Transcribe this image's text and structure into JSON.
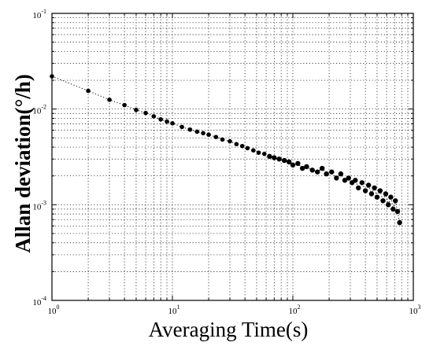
{
  "chart_data": {
    "type": "scatter",
    "title": "",
    "xlabel": "Averaging Time(s)",
    "ylabel": "Allan deviation(°/h)",
    "x_scale": "log",
    "y_scale": "log",
    "xlim": [
      1,
      1000
    ],
    "ylim": [
      0.0001,
      0.1
    ],
    "grid": true,
    "x_ticks": [
      {
        "value": 1,
        "base": "10",
        "exp": "0"
      },
      {
        "value": 10,
        "base": "10",
        "exp": "1"
      },
      {
        "value": 100,
        "base": "10",
        "exp": "2"
      },
      {
        "value": 1000,
        "base": "10",
        "exp": "3"
      }
    ],
    "y_ticks": [
      {
        "value": 0.0001,
        "base": "10",
        "exp": "-4"
      },
      {
        "value": 0.001,
        "base": "10",
        "exp": "-3"
      },
      {
        "value": 0.01,
        "base": "10",
        "exp": "-2"
      },
      {
        "value": 0.1,
        "base": "10",
        "exp": "-1"
      }
    ],
    "series": [
      {
        "color": "#000000",
        "x": [
          1,
          2,
          3,
          4,
          5,
          6,
          7,
          8,
          9,
          10,
          12,
          14,
          16,
          18,
          20,
          23,
          26,
          30,
          34,
          38,
          42,
          47,
          52,
          58,
          64,
          70,
          77,
          85,
          93,
          100,
          110,
          120,
          130,
          145,
          160,
          175,
          190,
          210,
          230,
          250,
          270,
          290,
          310,
          330,
          350,
          375,
          400,
          425,
          450,
          475,
          500,
          530,
          560,
          590,
          620,
          650,
          680,
          710,
          740,
          770
        ],
        "y": [
          0.022,
          0.0155,
          0.0125,
          0.011,
          0.0098,
          0.0091,
          0.0084,
          0.0078,
          0.0074,
          0.0071,
          0.0065,
          0.0061,
          0.0058,
          0.0056,
          0.0054,
          0.0051,
          0.0048,
          0.0046,
          0.0043,
          0.0041,
          0.0039,
          0.0037,
          0.0035,
          0.0034,
          0.0032,
          0.0031,
          0.003,
          0.0029,
          0.0028,
          0.0026,
          0.0027,
          0.0024,
          0.0025,
          0.0023,
          0.0022,
          0.0024,
          0.0021,
          0.0022,
          0.0019,
          0.0021,
          0.0018,
          0.0019,
          0.0017,
          0.0018,
          0.0015,
          0.0017,
          0.0014,
          0.0016,
          0.0013,
          0.0015,
          0.0012,
          0.0014,
          0.0011,
          0.0013,
          0.001,
          0.0012,
          0.0009,
          0.0011,
          0.00085,
          0.00065
        ]
      }
    ]
  }
}
